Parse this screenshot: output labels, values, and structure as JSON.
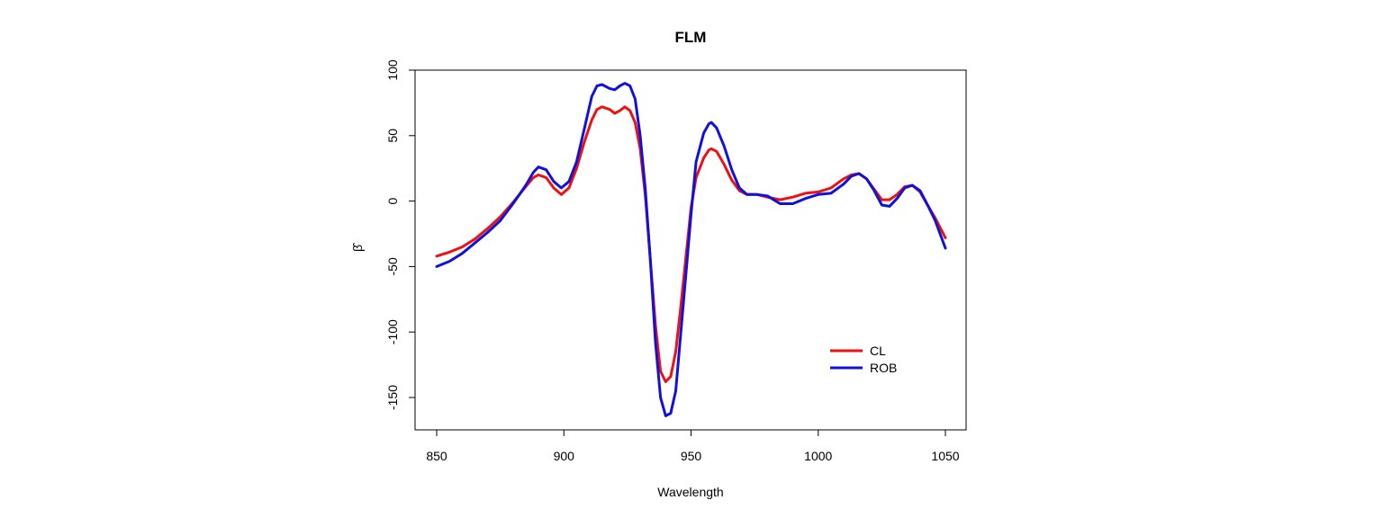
{
  "chart_data": {
    "type": "line",
    "title": "FLM",
    "xlabel": "Wavelength",
    "ylabel": "β̂",
    "xlim": [
      850,
      1050
    ],
    "ylim": [
      -175,
      100
    ],
    "xticks": [
      850,
      900,
      950,
      1000,
      1050
    ],
    "yticks": [
      -150,
      -100,
      -50,
      0,
      50,
      100
    ],
    "grid": false,
    "legend_position": "bottom-right",
    "series": [
      {
        "name": "CL",
        "color": "#ee1111",
        "x": [
          850,
          855,
          860,
          865,
          870,
          875,
          880,
          885,
          888,
          890,
          893,
          896,
          899,
          902,
          905,
          908,
          911,
          913,
          915,
          918,
          920,
          922,
          924,
          926,
          928,
          930,
          932,
          934,
          936,
          938,
          940,
          942,
          944,
          946,
          948,
          950,
          952,
          955,
          957,
          958,
          960,
          963,
          966,
          969,
          972,
          976,
          980,
          985,
          990,
          995,
          1000,
          1005,
          1010,
          1013,
          1016,
          1019,
          1022,
          1025,
          1028,
          1031,
          1034,
          1037,
          1040,
          1043,
          1046,
          1050
        ],
        "values": [
          -42,
          -39,
          -35,
          -29,
          -21,
          -12,
          -1,
          11,
          18,
          20,
          18,
          10,
          5,
          10,
          25,
          45,
          62,
          70,
          72,
          70,
          67,
          69,
          72,
          69,
          60,
          40,
          5,
          -45,
          -95,
          -130,
          -138,
          -134,
          -115,
          -80,
          -42,
          -5,
          18,
          33,
          39,
          40,
          38,
          28,
          16,
          8,
          5,
          5,
          3,
          1,
          3,
          6,
          7,
          10,
          17,
          20,
          21,
          17,
          9,
          1,
          1,
          5,
          11,
          12,
          7,
          -3,
          -13,
          -28
        ]
      },
      {
        "name": "ROB",
        "color": "#1111dd",
        "x": [
          850,
          855,
          860,
          865,
          870,
          875,
          880,
          885,
          888,
          890,
          893,
          896,
          899,
          902,
          905,
          908,
          911,
          913,
          915,
          918,
          920,
          922,
          924,
          926,
          928,
          930,
          932,
          934,
          936,
          938,
          940,
          942,
          944,
          946,
          948,
          950,
          952,
          955,
          957,
          958,
          960,
          963,
          966,
          969,
          972,
          976,
          980,
          985,
          990,
          995,
          1000,
          1005,
          1010,
          1013,
          1016,
          1019,
          1022,
          1025,
          1028,
          1031,
          1034,
          1037,
          1040,
          1043,
          1046,
          1050
        ],
        "values": [
          -50,
          -46,
          -40,
          -32,
          -24,
          -15,
          -2,
          12,
          22,
          26,
          24,
          15,
          10,
          15,
          30,
          55,
          80,
          88,
          89,
          86,
          85,
          88,
          90,
          88,
          78,
          50,
          10,
          -45,
          -108,
          -150,
          -164,
          -162,
          -145,
          -100,
          -55,
          -10,
          30,
          52,
          59,
          60,
          56,
          42,
          24,
          10,
          5,
          5,
          4,
          -2,
          -2,
          2,
          5,
          6,
          13,
          19,
          21,
          17,
          8,
          -3,
          -4,
          2,
          10,
          12,
          8,
          -3,
          -15,
          -36
        ]
      }
    ]
  }
}
